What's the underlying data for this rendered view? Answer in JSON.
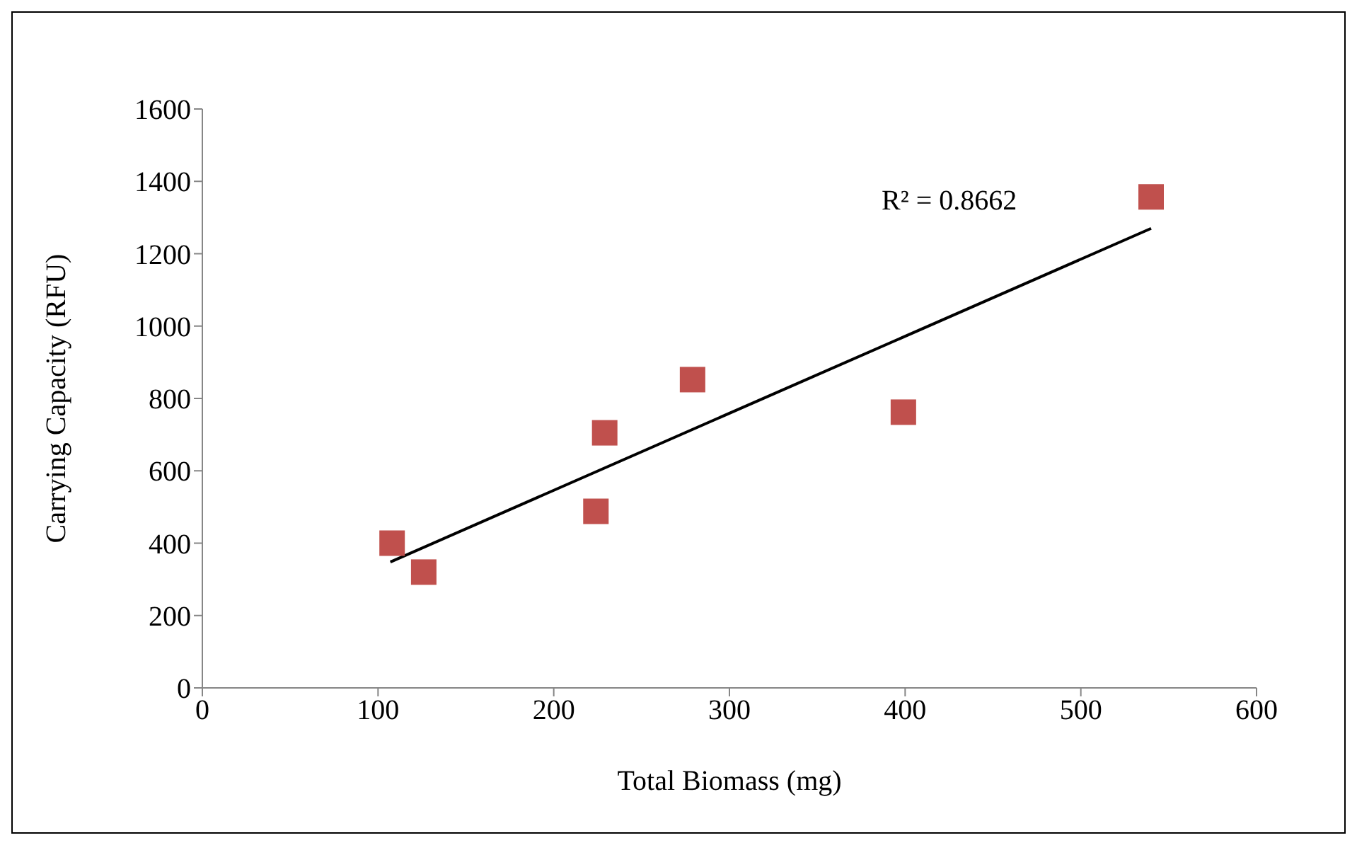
{
  "chart_data": {
    "type": "scatter",
    "xlabel": "Total Biomass (mg)",
    "ylabel": "Carrying Capacity (RFU)",
    "xlim": [
      0,
      600
    ],
    "xticks": [
      0,
      100,
      200,
      300,
      400,
      500,
      600
    ],
    "ylim": [
      0,
      1600
    ],
    "yticks": [
      0,
      200,
      400,
      600,
      800,
      1000,
      1200,
      1400,
      1600
    ],
    "grid": false,
    "marker": "square",
    "series": [
      {
        "color": "#c0504d",
        "x": [
          108,
          126,
          224,
          229,
          279,
          399,
          540
        ],
        "values": [
          400,
          320,
          488,
          705,
          852,
          762,
          1357
        ]
      },
      {
        "type": "line",
        "color": "#000000",
        "marker": "none",
        "x": [
          107,
          540
        ],
        "values": [
          348,
          1270
        ]
      }
    ],
    "annotations": [
      "R² = 0.8662"
    ]
  }
}
